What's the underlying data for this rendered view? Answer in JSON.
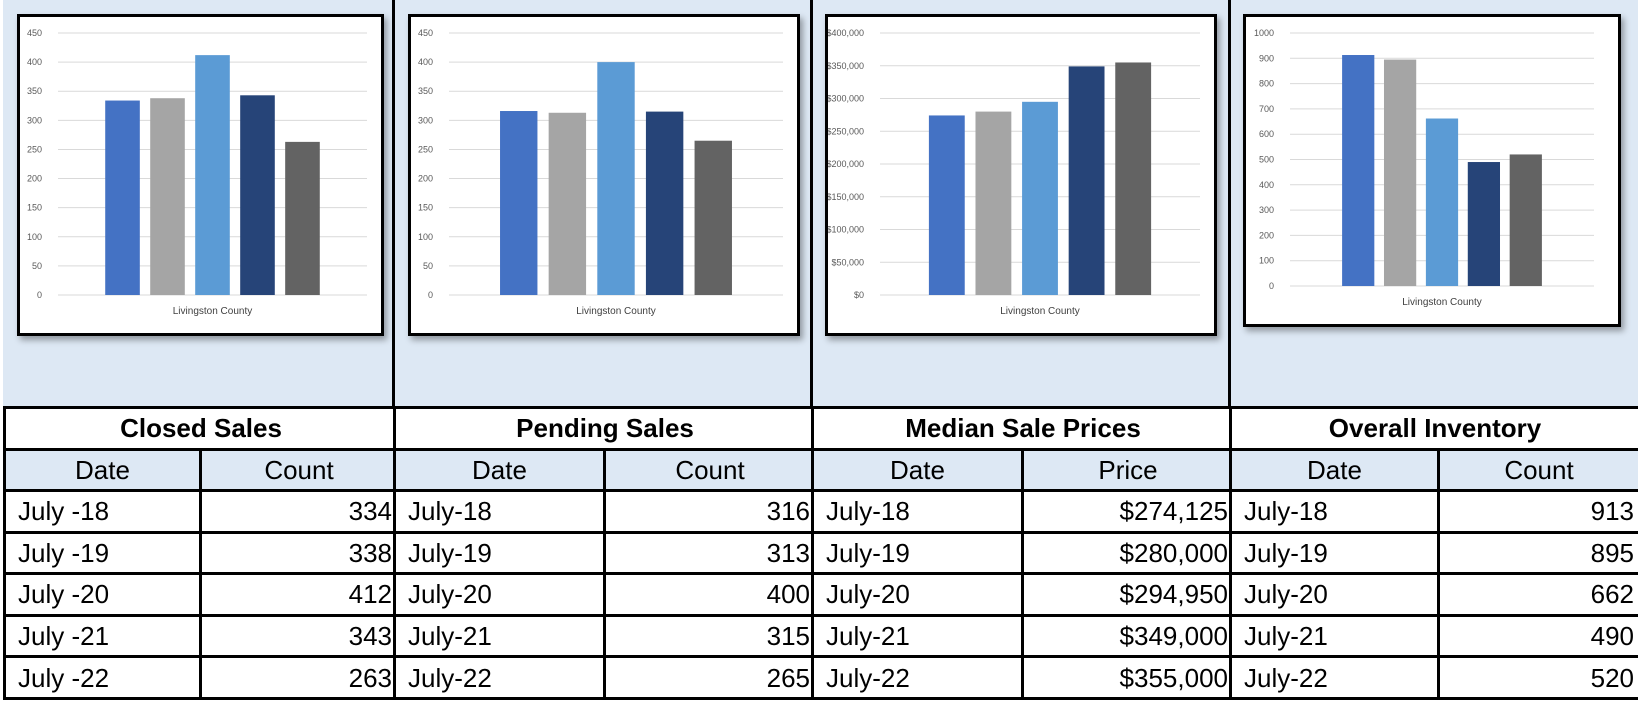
{
  "colors": {
    "panel_bg": "#dde8f4",
    "series": [
      "#4472c4",
      "#a5a5a5",
      "#5b9bd5",
      "#264478",
      "#636363"
    ]
  },
  "chart_data": [
    {
      "type": "bar",
      "categories": [
        "Livingston County"
      ],
      "series": [
        {
          "values": [
            334
          ]
        },
        {
          "values": [
            338
          ]
        },
        {
          "values": [
            412
          ]
        },
        {
          "values": [
            343
          ]
        },
        {
          "values": [
            263
          ]
        }
      ],
      "ylim": [
        0,
        450
      ],
      "yticks": [
        "0",
        "50",
        "100",
        "150",
        "200",
        "250",
        "300",
        "350",
        "400",
        "450"
      ],
      "grid": true
    },
    {
      "type": "bar",
      "categories": [
        "Livingston County"
      ],
      "series": [
        {
          "values": [
            316
          ]
        },
        {
          "values": [
            313
          ]
        },
        {
          "values": [
            400
          ]
        },
        {
          "values": [
            315
          ]
        },
        {
          "values": [
            265
          ]
        }
      ],
      "ylim": [
        0,
        450
      ],
      "yticks": [
        "0",
        "50",
        "100",
        "150",
        "200",
        "250",
        "300",
        "350",
        "400",
        "450"
      ],
      "grid": true
    },
    {
      "type": "bar",
      "categories": [
        "Livingston County"
      ],
      "series": [
        {
          "values": [
            274125
          ]
        },
        {
          "values": [
            280000
          ]
        },
        {
          "values": [
            294950
          ]
        },
        {
          "values": [
            349000
          ]
        },
        {
          "values": [
            355000
          ]
        }
      ],
      "ylim": [
        0,
        400000
      ],
      "yticks": [
        "$0",
        "$50,000",
        "$100,000",
        "$150,000",
        "$200,000",
        "$250,000",
        "$300,000",
        "$350,000",
        "$400,000"
      ],
      "grid": true
    },
    {
      "type": "bar",
      "categories": [
        "Livingston County"
      ],
      "series": [
        {
          "values": [
            913
          ]
        },
        {
          "values": [
            895
          ]
        },
        {
          "values": [
            662
          ]
        },
        {
          "values": [
            490
          ]
        },
        {
          "values": [
            520
          ]
        }
      ],
      "ylim": [
        0,
        1000
      ],
      "yticks": [
        "0",
        "100",
        "200",
        "300",
        "400",
        "500",
        "600",
        "700",
        "800",
        "900",
        "1000"
      ],
      "grid": true
    }
  ],
  "tables": [
    {
      "title": "Closed Sales",
      "headers": [
        "Date",
        "Count"
      ],
      "rows": [
        [
          "July -18",
          "334"
        ],
        [
          "July -19",
          "338"
        ],
        [
          "July -20",
          "412"
        ],
        [
          "July -21",
          "343"
        ],
        [
          "July -22",
          "263"
        ]
      ]
    },
    {
      "title": "Pending Sales",
      "headers": [
        "Date",
        "Count"
      ],
      "rows": [
        [
          "July-18",
          "316"
        ],
        [
          "July-19",
          "313"
        ],
        [
          "July-20",
          "400"
        ],
        [
          "July-21",
          "315"
        ],
        [
          "July-22",
          "265"
        ]
      ]
    },
    {
      "title": "Median Sale Prices",
      "headers": [
        "Date",
        "Price"
      ],
      "rows": [
        [
          "July-18",
          "$274,125"
        ],
        [
          "July-19",
          "$280,000"
        ],
        [
          "July-20",
          "$294,950"
        ],
        [
          "July-21",
          "$349,000"
        ],
        [
          "July-22",
          "$355,000"
        ]
      ]
    },
    {
      "title": "Overall Inventory",
      "headers": [
        "Date",
        "Count"
      ],
      "rows": [
        [
          "July-18",
          "913"
        ],
        [
          "July-19",
          "895"
        ],
        [
          "July-20",
          "662"
        ],
        [
          "July-21",
          "490"
        ],
        [
          "July-22",
          "520"
        ]
      ]
    }
  ]
}
